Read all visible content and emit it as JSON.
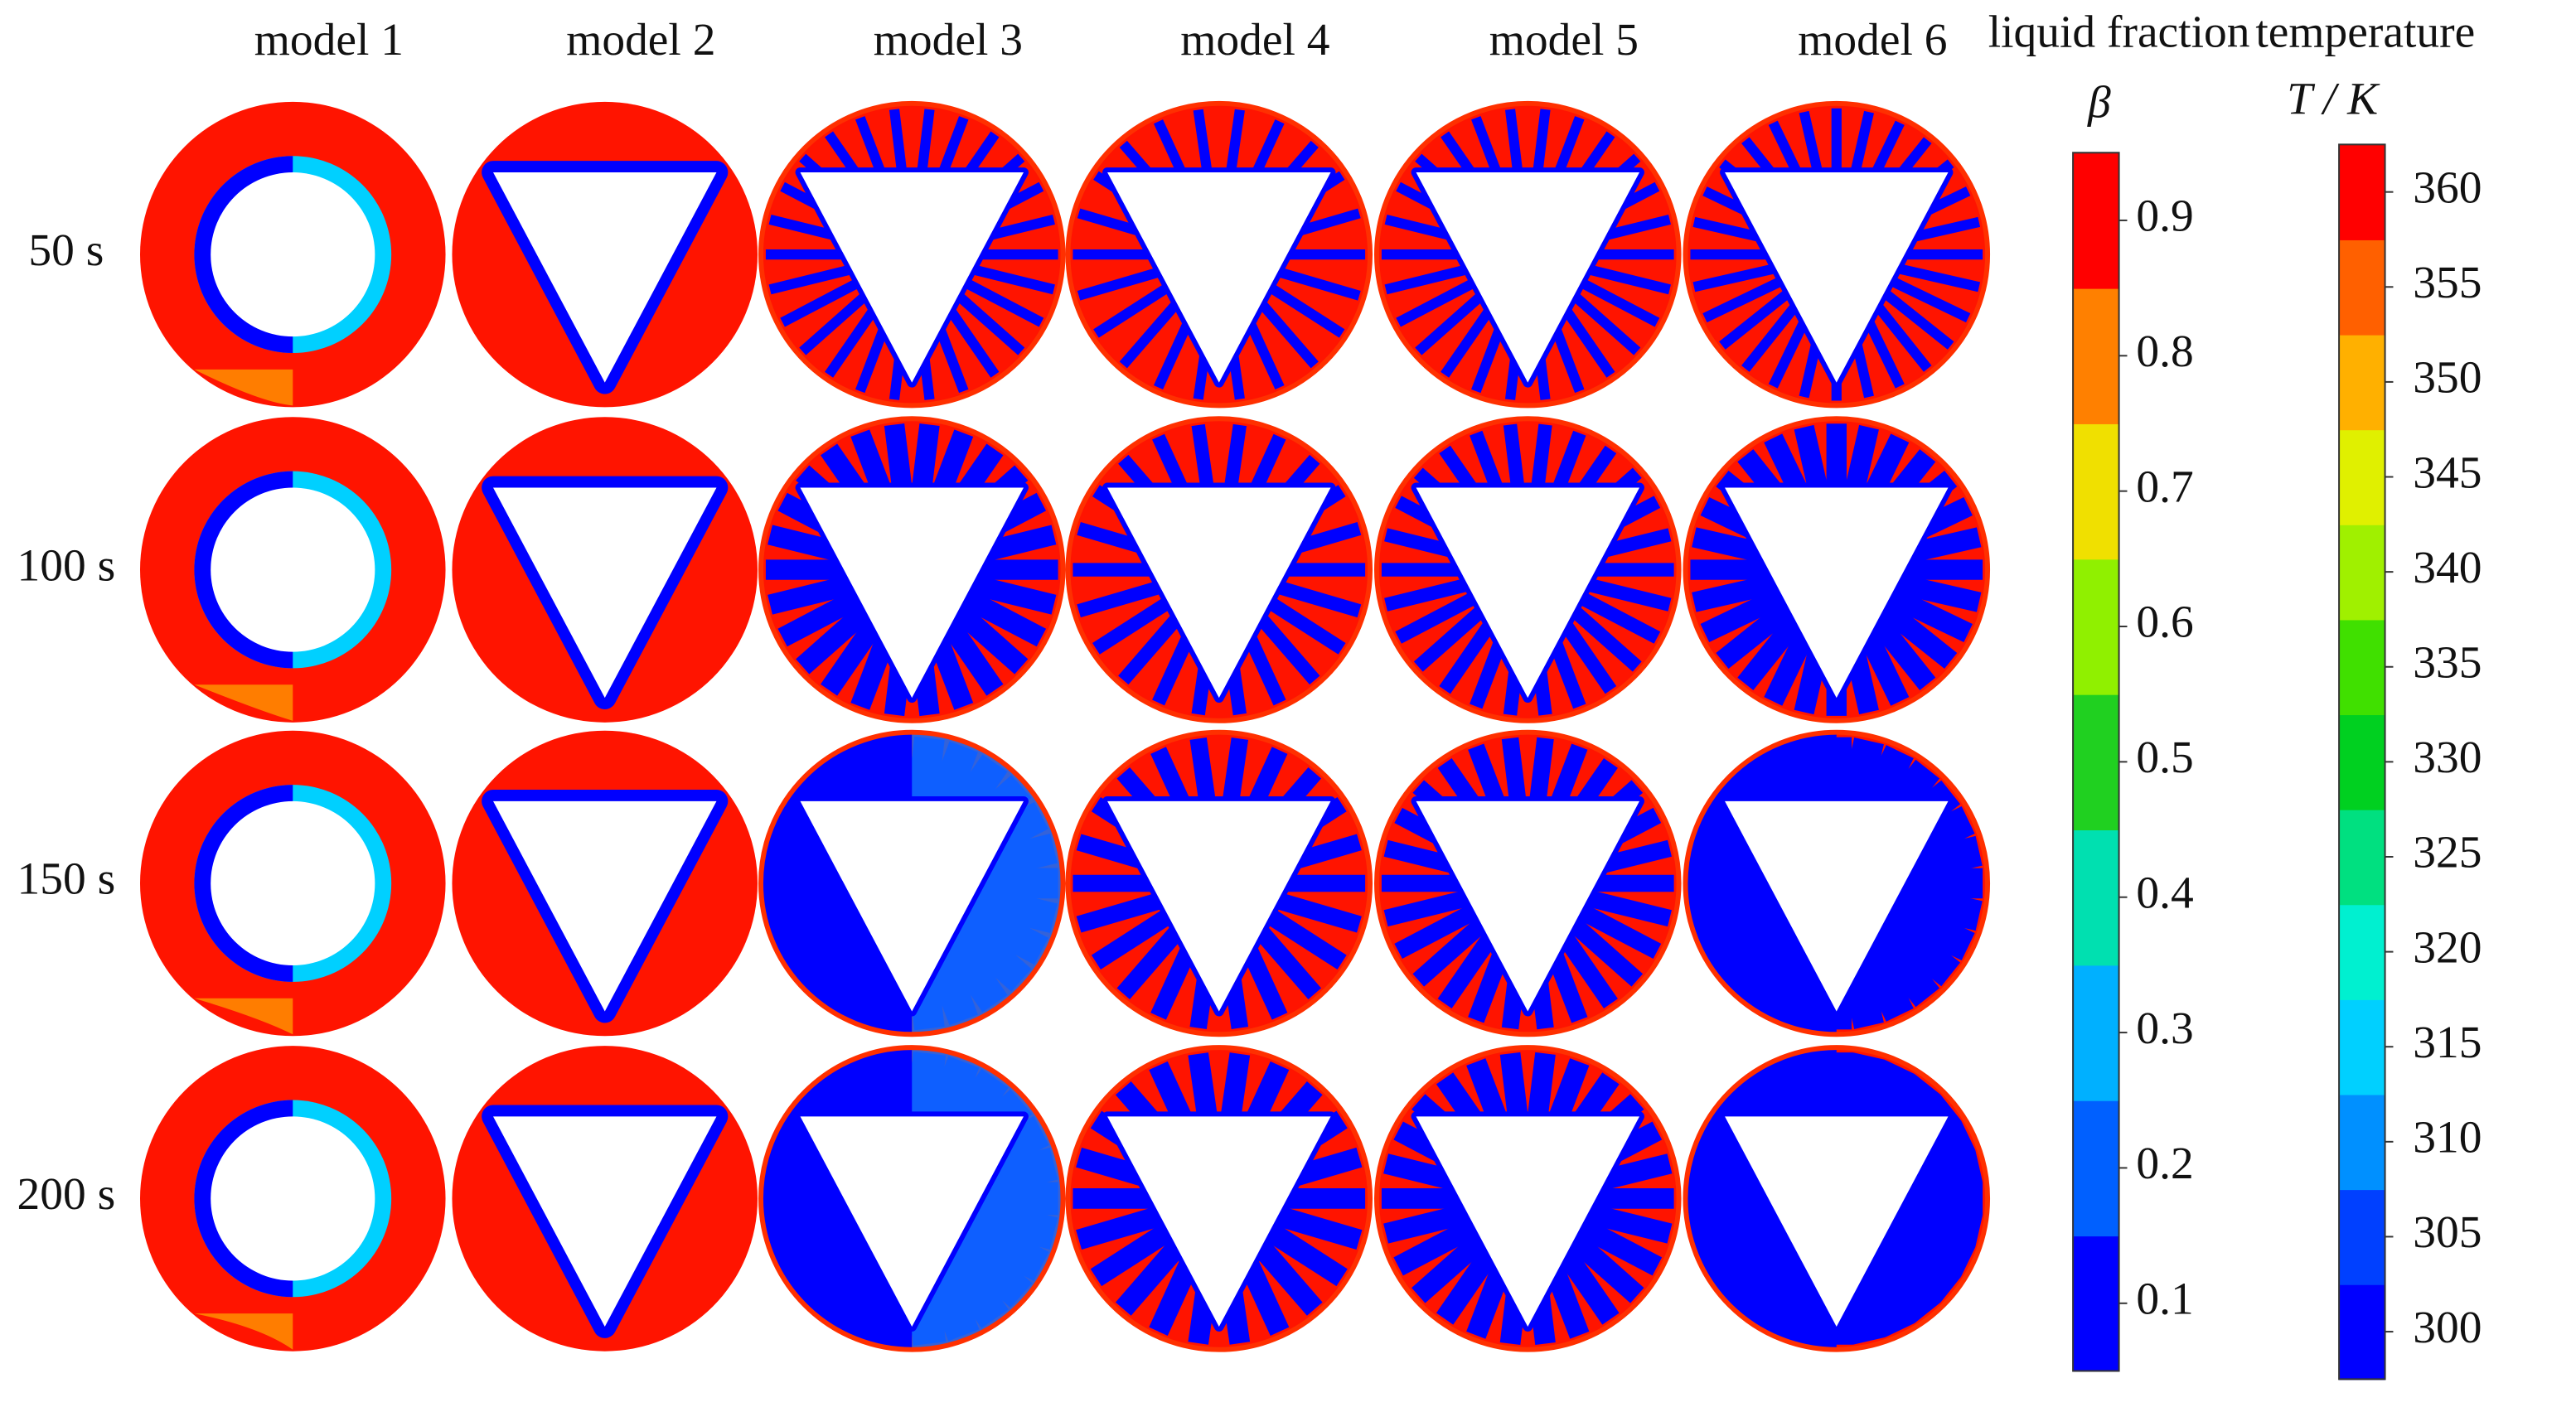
{
  "columns": [
    "model 1",
    "model 2",
    "model 3",
    "model 4",
    "model 5",
    "model 6"
  ],
  "rows": [
    "50 s",
    "100 s",
    "150 s",
    "200 s"
  ],
  "colorbars": [
    {
      "title": "liquid fraction",
      "symbol": "β",
      "range": [
        0.05,
        0.95
      ],
      "ticks": [
        0.1,
        0.2,
        0.3,
        0.4,
        0.5,
        0.6,
        0.7,
        0.8,
        0.9
      ],
      "colors": [
        "#0000ff",
        "#0060ff",
        "#00b0ff",
        "#00e0b0",
        "#20d020",
        "#90f000",
        "#f0e000",
        "#ff8000",
        "#ff0000"
      ]
    },
    {
      "title": "temperature",
      "symbol": "T / K",
      "range": [
        297.5,
        362.5
      ],
      "ticks": [
        300,
        305,
        310,
        315,
        320,
        325,
        330,
        335,
        340,
        345,
        350,
        355,
        360
      ],
      "colors": [
        "#0000ff",
        "#0040ff",
        "#0090ff",
        "#00d0ff",
        "#00f0d0",
        "#00e080",
        "#00d020",
        "#40e000",
        "#a0f000",
        "#e0f000",
        "#ffb000",
        "#ff6000",
        "#ff0000"
      ]
    }
  ]
}
